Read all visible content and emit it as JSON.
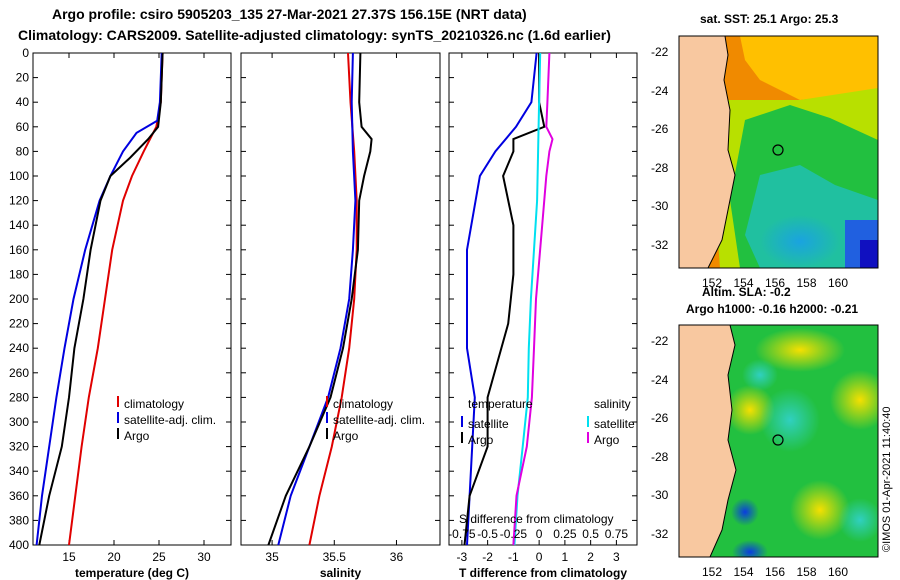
{
  "header": {
    "title1": "Argo profile: csiro 5905203_135 27-Mar-2021 27.37S 156.15E (NRT data)",
    "title2": "Climatology: CARS2009. Satellite-adjusted climatology: synTS_20210326.nc (1.6d earlier)"
  },
  "colors": {
    "climatology": "#e00000",
    "satellite": "#0000e0",
    "argo": "#000000",
    "sat_salinity": "#00e0f0",
    "argo_salinity": "#e000e0"
  },
  "chart_data": [
    {
      "type": "line",
      "id": "temperature",
      "xlabel": "temperature (deg C)",
      "xlim": [
        11,
        33
      ],
      "ylim": [
        0,
        400
      ],
      "xticks": [
        15,
        20,
        25,
        30
      ],
      "yticks": [
        0,
        20,
        40,
        60,
        80,
        100,
        120,
        140,
        160,
        180,
        200,
        220,
        240,
        260,
        280,
        300,
        320,
        340,
        360,
        380,
        400
      ],
      "legend": [
        "climatology",
        "satellite-adj. clim.",
        "Argo"
      ],
      "series": [
        {
          "name": "climatology",
          "depth": [
            0,
            40,
            60,
            80,
            100,
            120,
            160,
            200,
            240,
            280,
            320,
            360,
            400
          ],
          "values": [
            25.4,
            25.2,
            24.7,
            23.3,
            22.0,
            21.0,
            19.8,
            19.0,
            18.2,
            17.2,
            16.4,
            15.7,
            15.0
          ]
        },
        {
          "name": "satellite-adj. clim.",
          "depth": [
            0,
            40,
            55,
            65,
            80,
            100,
            120,
            160,
            200,
            240,
            280,
            320,
            360,
            400
          ],
          "values": [
            25.3,
            25.1,
            24.8,
            22.5,
            21.0,
            19.6,
            18.4,
            16.8,
            15.5,
            14.5,
            13.6,
            12.8,
            12.0,
            11.4
          ]
        },
        {
          "name": "Argo",
          "depth": [
            0,
            40,
            60,
            70,
            85,
            100,
            120,
            160,
            200,
            240,
            280,
            320,
            360,
            400
          ],
          "values": [
            25.4,
            25.2,
            24.9,
            23.8,
            21.8,
            19.6,
            18.5,
            17.4,
            16.6,
            15.6,
            15.0,
            14.2,
            12.8,
            11.7
          ]
        }
      ]
    },
    {
      "type": "line",
      "id": "salinity",
      "xlabel": "salinity",
      "xlim": [
        34.75,
        36.35
      ],
      "ylim": [
        0,
        400
      ],
      "xticks": [
        35,
        35.5,
        36
      ],
      "tick_labels": [
        "35",
        "35.5",
        "36"
      ],
      "legend": [
        "climatology",
        "satellite-adj. clim.",
        "Argo"
      ],
      "series": [
        {
          "name": "climatology",
          "depth": [
            0,
            40,
            80,
            120,
            160,
            200,
            240,
            280,
            320,
            360,
            400
          ],
          "values": [
            35.61,
            35.63,
            35.66,
            35.68,
            35.68,
            35.66,
            35.62,
            35.56,
            35.48,
            35.38,
            35.3
          ]
        },
        {
          "name": "satellite-adj. clim.",
          "depth": [
            0,
            40,
            80,
            120,
            160,
            200,
            240,
            280,
            320,
            360,
            400
          ],
          "values": [
            35.65,
            35.64,
            35.65,
            35.67,
            35.65,
            35.62,
            35.55,
            35.45,
            35.3,
            35.15,
            35.05
          ]
        },
        {
          "name": "Argo",
          "depth": [
            0,
            40,
            60,
            70,
            80,
            100,
            120,
            160,
            200,
            240,
            280,
            320,
            360,
            400
          ],
          "values": [
            35.71,
            35.7,
            35.72,
            35.8,
            35.79,
            35.74,
            35.7,
            35.69,
            35.64,
            35.57,
            35.47,
            35.3,
            35.11,
            34.97
          ]
        }
      ]
    },
    {
      "type": "line",
      "id": "difference",
      "xlabel": "T difference from climatology",
      "xlabel2": "S difference from climatology",
      "xlim": [
        -3.5,
        3.8
      ],
      "ylim": [
        0,
        400
      ],
      "xticks": [
        -3,
        -2,
        -1,
        0,
        1,
        2,
        3
      ],
      "s_tick_values": [
        -0.75,
        -0.5,
        -0.25,
        0,
        0.25,
        0.5,
        0.75
      ],
      "s_tick_labels": [
        "-0.75",
        "-0.5",
        "-0.25",
        "0",
        "0.25",
        "0.5",
        "0.75"
      ],
      "legend_temperature_title": "temperature",
      "legend_salinity_title": "salinity",
      "legend_temperature": [
        "satellite",
        "Argo"
      ],
      "legend_salinity": [
        "satellite",
        "Argo"
      ],
      "series": [
        {
          "name": "temperature satellite",
          "depth": [
            0,
            40,
            60,
            80,
            100,
            160,
            240,
            280,
            320,
            360,
            400
          ],
          "values": [
            -0.1,
            -0.3,
            -0.9,
            -1.7,
            -2.3,
            -2.8,
            -2.8,
            -2.5,
            -2.6,
            -2.7,
            -2.8
          ]
        },
        {
          "name": "temperature Argo",
          "depth": [
            0,
            40,
            60,
            70,
            80,
            100,
            140,
            180,
            220,
            280,
            320,
            360,
            400
          ],
          "values": [
            0.0,
            0.0,
            0.2,
            -1.0,
            -1.0,
            -1.4,
            -1.0,
            -1.0,
            -1.2,
            -2.0,
            -2.0,
            -2.7,
            -2.9
          ]
        },
        {
          "name": "salinity satellite",
          "depth": [
            0,
            40,
            80,
            120,
            160,
            200,
            240,
            280,
            320,
            360,
            400
          ],
          "values": [
            0.01,
            0.0,
            -0.01,
            -0.02,
            -0.05,
            -0.08,
            -0.1,
            -0.11,
            -0.16,
            -0.21,
            -0.24
          ]
        },
        {
          "name": "salinity Argo",
          "depth": [
            0,
            40,
            60,
            70,
            80,
            100,
            140,
            200,
            240,
            280,
            320,
            360,
            400
          ],
          "values": [
            0.1,
            0.08,
            0.07,
            0.13,
            0.1,
            0.07,
            0.03,
            -0.03,
            -0.05,
            -0.07,
            -0.12,
            -0.22,
            -0.25
          ]
        }
      ]
    }
  ],
  "maps": {
    "sst": {
      "title": "sat. SST: 25.1 Argo: 25.3",
      "lon_ticks": [
        "152",
        "154",
        "156",
        "158",
        "160"
      ],
      "lat_ticks": [
        "-22",
        "-24",
        "-26",
        "-28",
        "-30",
        "-32"
      ]
    },
    "sla": {
      "title1": "Altim. SLA: -0.2",
      "title2": "Argo h1000: -0.16 h2000: -0.21",
      "lon_ticks": [
        "152",
        "154",
        "156",
        "158",
        "160"
      ],
      "lat_ticks": [
        "-22",
        "-24",
        "-26",
        "-28",
        "-30",
        "-32"
      ]
    }
  },
  "footer": "©IMOS 01-Apr-2021 11:40:40"
}
